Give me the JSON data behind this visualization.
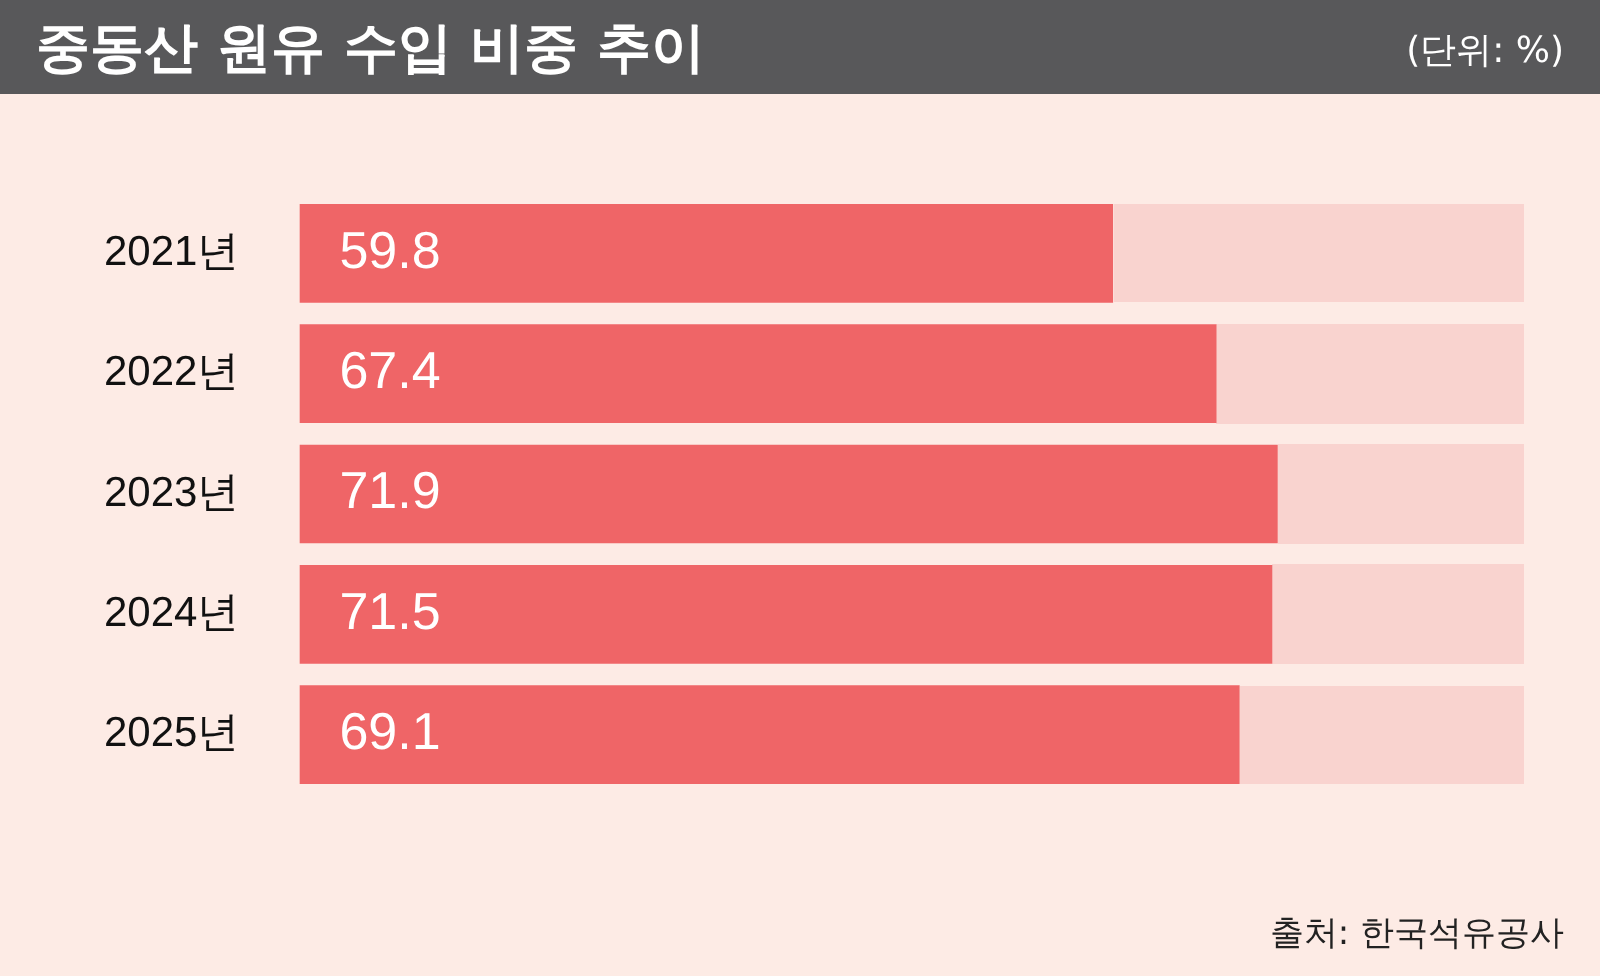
{
  "chart_data": {
    "type": "bar",
    "orientation": "horizontal",
    "title": "중동산 원유 수입 비중 추이",
    "subtitle": "(단위: %)",
    "annotations": [
      "출처: 한국석유공사"
    ],
    "categories": [
      "2021년",
      "2022년",
      "2023년",
      "2024년",
      "2025년"
    ],
    "values": [
      59.8,
      67.4,
      71.9,
      71.5,
      69.1
    ],
    "color": "#ef6567",
    "data_labels": true
  }
}
